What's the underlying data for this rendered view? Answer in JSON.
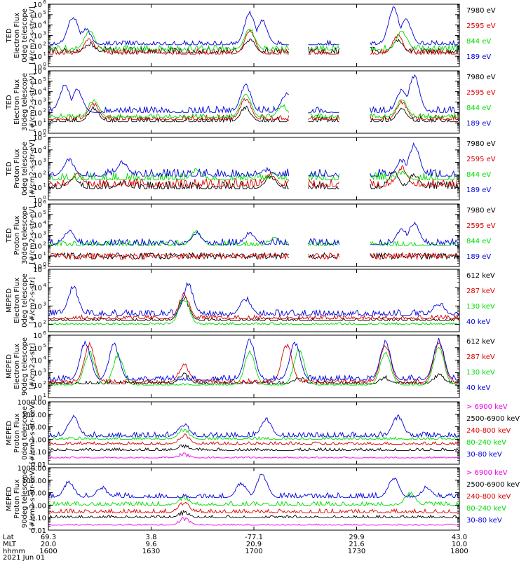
{
  "chart_data": [
    {
      "type": "line",
      "ylabel": [
        "TED",
        "Electron Flux",
        "0deg telescope",
        "[#/cm2-s-str-eV]"
      ],
      "y_log": true,
      "ylim_exp": [
        0,
        6
      ],
      "ytick_exps": [
        0,
        1,
        2,
        3,
        4,
        5,
        6
      ],
      "series": [
        {
          "name": "7980 eV",
          "color": "#000000",
          "base": 1.3,
          "spread": 0.6,
          "peaks": [
            [
              0.1,
              2.2
            ],
            [
              0.12,
              1.5
            ],
            [
              0.24,
              1.2
            ],
            [
              0.49,
              2.6
            ],
            [
              0.85,
              2.5
            ]
          ]
        },
        {
          "name": "2595 eV",
          "color": "#dd0000",
          "base": 1.2,
          "spread": 0.5,
          "peaks": [
            [
              0.1,
              2.6
            ],
            [
              0.12,
              1.8
            ],
            [
              0.25,
              1.4
            ],
            [
              0.49,
              3.4
            ],
            [
              0.85,
              3.0
            ]
          ]
        },
        {
          "name": "844 eV",
          "color": "#00dd00",
          "base": 1.6,
          "spread": 0.5,
          "peaks": [
            [
              0.1,
              3.4
            ],
            [
              0.49,
              3.6
            ],
            [
              0.86,
              3.4
            ]
          ]
        },
        {
          "name": "189 eV",
          "color": "#0000dd",
          "base": 2.1,
          "spread": 0.4,
          "peaks": [
            [
              0.06,
              4.8
            ],
            [
              0.09,
              3.6
            ],
            [
              0.49,
              5.2
            ],
            [
              0.52,
              4.4
            ],
            [
              0.84,
              5.6
            ],
            [
              0.87,
              4.6
            ]
          ]
        }
      ]
    },
    {
      "type": "line",
      "ylabel": [
        "TED",
        "Electron Flux",
        "30deg telescope",
        "[#/cm2-s-str-eV]"
      ],
      "y_log": true,
      "ylim_exp": [
        0,
        6
      ],
      "ytick_exps": [
        0,
        1,
        2,
        3,
        4,
        5,
        6
      ],
      "series": [
        {
          "name": "7980 eV",
          "color": "#000000",
          "base": 1.1,
          "spread": 0.5,
          "peaks": [
            [
              0.11,
              2.4
            ],
            [
              0.48,
              2.5
            ],
            [
              0.86,
              2.3
            ]
          ]
        },
        {
          "name": "2595 eV",
          "color": "#dd0000",
          "base": 1.3,
          "spread": 0.5,
          "peaks": [
            [
              0.11,
              2.8
            ],
            [
              0.48,
              3.3
            ],
            [
              0.86,
              3.0
            ]
          ]
        },
        {
          "name": "844 eV",
          "color": "#00dd00",
          "base": 1.5,
          "spread": 0.4,
          "peaks": [
            [
              0.11,
              3.2
            ],
            [
              0.48,
              3.8
            ],
            [
              0.57,
              2.6
            ],
            [
              0.86,
              3.2
            ]
          ]
        },
        {
          "name": "189 eV",
          "color": "#0000dd",
          "base": 2.0,
          "spread": 0.6,
          "peaks": [
            [
              0.04,
              4.6
            ],
            [
              0.07,
              4.2
            ],
            [
              0.48,
              4.6
            ],
            [
              0.58,
              3.8
            ],
            [
              0.86,
              4.2
            ],
            [
              0.89,
              5.5
            ]
          ]
        }
      ]
    },
    {
      "type": "line",
      "ylabel": [
        "TED",
        "Proton Flux",
        "0deg telescope",
        "[#/cm2-s-str-eV]"
      ],
      "y_log": true,
      "ylim_exp": [
        0,
        5
      ],
      "ytick_exps": [
        0,
        1,
        2,
        3,
        4,
        5
      ],
      "series": [
        {
          "name": "7980 eV",
          "color": "#000000",
          "base": 0.9,
          "spread": 0.6,
          "peaks": [
            [
              0.06,
              1.8
            ],
            [
              0.18,
              1.4
            ],
            [
              0.54,
              1.9
            ],
            [
              0.84,
              2.2
            ],
            [
              0.89,
              2.0
            ]
          ]
        },
        {
          "name": "2595 eV",
          "color": "#dd0000",
          "base": 1.1,
          "spread": 0.6,
          "peaks": [
            [
              0.07,
              2.0
            ],
            [
              0.54,
              2.1
            ],
            [
              0.86,
              2.6
            ]
          ]
        },
        {
          "name": "844 eV",
          "color": "#00dd00",
          "base": 1.6,
          "spread": 0.6,
          "peaks": [
            [
              0.36,
              2.4
            ],
            [
              0.55,
              1.9
            ],
            [
              0.86,
              2.2
            ]
          ]
        },
        {
          "name": "189 eV",
          "color": "#0000dd",
          "base": 1.9,
          "spread": 0.6,
          "peaks": [
            [
              0.05,
              3.2
            ],
            [
              0.18,
              3.0
            ],
            [
              0.53,
              2.4
            ],
            [
              0.86,
              3.2
            ],
            [
              0.89,
              4.4
            ]
          ]
        }
      ]
    },
    {
      "type": "line",
      "ylabel": [
        "TED",
        "Proton Flux",
        "30deg telescope",
        "[#/cm2-s-str-eV]"
      ],
      "y_log": true,
      "ylim_exp": [
        0,
        6
      ],
      "ytick_exps": [
        0,
        1,
        2,
        3,
        4,
        5,
        6
      ],
      "series": [
        {
          "name": "7980 eV",
          "color": "#000000",
          "base": 1.0,
          "spread": 0.3,
          "peaks": []
        },
        {
          "name": "2595 eV",
          "color": "#dd0000",
          "base": 1.0,
          "spread": 0.3,
          "peaks": []
        },
        {
          "name": "844 eV",
          "color": "#00dd00",
          "base": 2.0,
          "spread": 0.5,
          "peaks": [
            [
              0.36,
              3.4
            ],
            [
              0.55,
              2.8
            ],
            [
              0.78,
              2.3
            ]
          ]
        },
        {
          "name": "189 eV",
          "color": "#0000dd",
          "base": 2.1,
          "spread": 0.6,
          "peaks": [
            [
              0.05,
              3.4
            ],
            [
              0.36,
              3.2
            ],
            [
              0.49,
              3.2
            ],
            [
              0.86,
              3.6
            ],
            [
              0.89,
              4.2
            ]
          ]
        }
      ]
    },
    {
      "type": "line",
      "ylabel": [
        "MEPED",
        "Electron Flux",
        "0deg telescope",
        "[#/cm2-s-str]"
      ],
      "y_log": true,
      "ylim_exp": [
        1.6,
        5
      ],
      "ytick_exps": [
        2,
        3,
        4,
        5
      ],
      "series": [
        {
          "name": "612 keV",
          "color": "#000000",
          "base": 2.2,
          "spread": 0.15,
          "peaks": [
            [
              0.33,
              3.4
            ]
          ]
        },
        {
          "name": "287 keV",
          "color": "#dd0000",
          "base": 2.3,
          "spread": 0.2,
          "peaks": [
            [
              0.33,
              3.6
            ]
          ]
        },
        {
          "name": "130 keV",
          "color": "#00dd00",
          "base": 2.0,
          "spread": 0.1,
          "peaks": [
            [
              0.33,
              3.4
            ]
          ]
        },
        {
          "name": "40 keV",
          "color": "#0000dd",
          "base": 2.5,
          "spread": 0.3,
          "peaks": [
            [
              0.06,
              4.0
            ],
            [
              0.34,
              4.1
            ],
            [
              0.48,
              3.4
            ],
            [
              0.95,
              3.2
            ]
          ]
        }
      ]
    },
    {
      "type": "line",
      "ylabel": [
        "MEPED",
        "Electron Flux",
        "90deg telescope",
        "[#/cm2-s-str]"
      ],
      "y_log": true,
      "ylim_exp": [
        1,
        6
      ],
      "ytick_exps": [
        1,
        2,
        3,
        4,
        5,
        6
      ],
      "series": [
        {
          "name": "612 keV",
          "color": "#000000",
          "base": 2.1,
          "spread": 0.25,
          "peaks": [
            [
              0.33,
              2.9
            ],
            [
              0.61,
              2.6
            ],
            [
              0.82,
              2.6
            ],
            [
              0.95,
              2.8
            ]
          ]
        },
        {
          "name": "287 keV",
          "color": "#dd0000",
          "base": 2.2,
          "spread": 0.3,
          "peaks": [
            [
              0.1,
              5.2
            ],
            [
              0.33,
              3.6
            ],
            [
              0.58,
              5.2
            ],
            [
              0.82,
              5.2
            ],
            [
              0.95,
              5.4
            ]
          ]
        },
        {
          "name": "130 keV",
          "color": "#00dd00",
          "base": 2.0,
          "spread": 0.15,
          "peaks": [
            [
              0.1,
              4.6
            ],
            [
              0.17,
              4.4
            ],
            [
              0.49,
              4.6
            ],
            [
              0.61,
              4.8
            ],
            [
              0.82,
              4.6
            ],
            [
              0.95,
              5.0
            ]
          ]
        },
        {
          "name": "40 keV",
          "color": "#0000dd",
          "base": 2.4,
          "spread": 0.4,
          "peaks": [
            [
              0.09,
              5.4
            ],
            [
              0.16,
              5.2
            ],
            [
              0.49,
              5.6
            ],
            [
              0.6,
              5.4
            ],
            [
              0.82,
              5.4
            ],
            [
              0.95,
              5.6
            ]
          ]
        }
      ]
    },
    {
      "type": "line",
      "ylabel": [
        "MEPED",
        "Proton Flux",
        "0deg telescope",
        "[#/cm2-s-str-keV]"
      ],
      "y_log": true,
      "ylim_exp": [
        -2,
        3
      ],
      "ytick_labels": [
        "0.01",
        "0.10",
        "1.00",
        "10.00",
        "100.00",
        "1000.00"
      ],
      "ytick_exps": [
        -2,
        -1,
        0,
        1,
        2,
        3
      ],
      "series": [
        {
          "name": "> 6900 keV",
          "color": "#ee00ee",
          "base": -1.5,
          "spread": 0.1,
          "peaks": [
            [
              0.33,
              -1.2
            ]
          ]
        },
        {
          "name": "2500-6900 keV",
          "color": "#000000",
          "base": -0.9,
          "spread": 0.2,
          "peaks": [
            [
              0.33,
              -0.5
            ]
          ]
        },
        {
          "name": "240-800 keV",
          "color": "#dd0000",
          "base": -0.4,
          "spread": 0.2,
          "peaks": [
            [
              0.33,
              0.3
            ]
          ]
        },
        {
          "name": "80-240 keV",
          "color": "#00dd00",
          "base": 0.0,
          "spread": 0.2,
          "peaks": [
            [
              0.33,
              0.8
            ]
          ]
        },
        {
          "name": "30-80 keV",
          "color": "#0000dd",
          "base": 0.2,
          "spread": 0.4,
          "peaks": [
            [
              0.06,
              1.8
            ],
            [
              0.33,
              1.2
            ],
            [
              0.53,
              1.6
            ],
            [
              0.85,
              1.8
            ]
          ]
        }
      ]
    },
    {
      "type": "line",
      "ylabel": [
        "MEPED",
        "Proton Flux",
        "90deg telescope",
        "[#/cm2-s-str-keV]"
      ],
      "y_log": true,
      "ylim_exp": [
        -2,
        3
      ],
      "ytick_labels": [
        "0.01",
        "0.10",
        "1.00",
        "10.00",
        "100.00",
        "1000.00"
      ],
      "ytick_exps": [
        -2,
        -1,
        0,
        1,
        2,
        3
      ],
      "series": [
        {
          "name": "> 6900 keV",
          "color": "#ee00ee",
          "base": -1.6,
          "spread": 0.1,
          "peaks": [
            [
              0.33,
              -1.1
            ]
          ]
        },
        {
          "name": "2500-6900 keV",
          "color": "#000000",
          "base": -1.0,
          "spread": 0.2,
          "peaks": [
            [
              0.33,
              -0.6
            ]
          ]
        },
        {
          "name": "240-800 keV",
          "color": "#dd0000",
          "base": -0.6,
          "spread": 0.3,
          "peaks": [
            [
              0.33,
              0.2
            ]
          ]
        },
        {
          "name": "80-240 keV",
          "color": "#00dd00",
          "base": 0.0,
          "spread": 0.3,
          "peaks": [
            [
              0.33,
              0.6
            ],
            [
              0.88,
              0.9
            ]
          ]
        },
        {
          "name": "30-80 keV",
          "color": "#0000dd",
          "base": 0.6,
          "spread": 0.4,
          "peaks": [
            [
              0.05,
              1.8
            ],
            [
              0.13,
              1.4
            ],
            [
              0.47,
              1.8
            ],
            [
              0.52,
              2.4
            ],
            [
              0.84,
              2.2
            ],
            [
              0.92,
              1.4
            ]
          ]
        }
      ]
    }
  ],
  "x_axis": {
    "row_labels": [
      "Lat",
      "MLT",
      "hhmm"
    ],
    "ticks": [
      {
        "pos": 0.0,
        "lat": "69.3",
        "mlt": "20.0",
        "hhmm": "1600"
      },
      {
        "pos": 0.25,
        "lat": "3.8",
        "mlt": "9.6",
        "hhmm": "1630"
      },
      {
        "pos": 0.5,
        "lat": "-77.1",
        "mlt": "20.9",
        "hhmm": "1700"
      },
      {
        "pos": 0.75,
        "lat": "29.9",
        "mlt": "21.6",
        "hhmm": "1730"
      },
      {
        "pos": 1.0,
        "lat": "43.0",
        "mlt": "10.0",
        "hhmm": "1800"
      }
    ],
    "date": "2021 Jun 01"
  }
}
